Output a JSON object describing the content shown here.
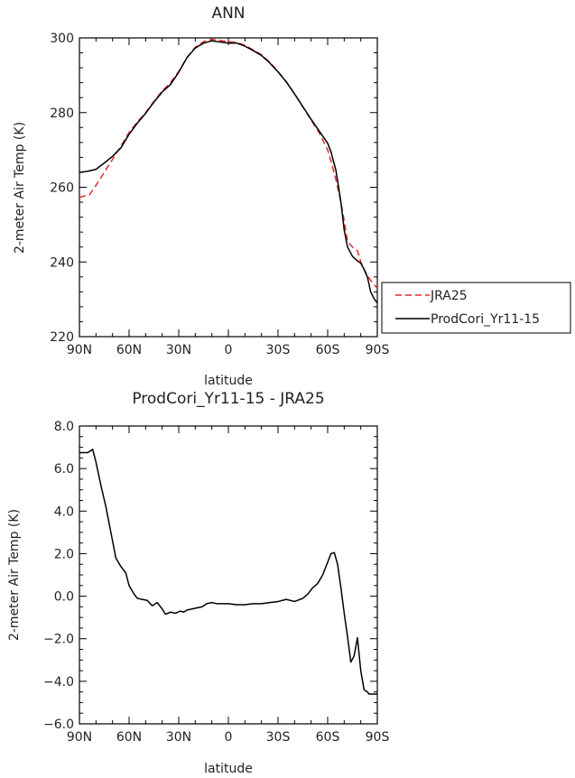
{
  "chart_data": [
    {
      "type": "line",
      "title": "ANN",
      "xlabel": "latitude",
      "ylabel": "2-meter Air Temp (K)",
      "x_reversed": true,
      "xlim": [
        -90,
        90
      ],
      "ylim": [
        220,
        300
      ],
      "x_ticks": [
        {
          "value": 90,
          "label": "90N"
        },
        {
          "value": 60,
          "label": "60N"
        },
        {
          "value": 30,
          "label": "30N"
        },
        {
          "value": 0,
          "label": "0"
        },
        {
          "value": -30,
          "label": "30S"
        },
        {
          "value": -60,
          "label": "60S"
        },
        {
          "value": -90,
          "label": "90S"
        }
      ],
      "y_ticks": [
        {
          "value": 220,
          "label": "220"
        },
        {
          "value": 240,
          "label": "240"
        },
        {
          "value": 260,
          "label": "260"
        },
        {
          "value": 280,
          "label": "280"
        },
        {
          "value": 300,
          "label": "300"
        }
      ],
      "legend": {
        "position": "outside-right"
      },
      "series": [
        {
          "name": "JRA25",
          "color": "#e8282b",
          "dash": "dashed",
          "x": [
            90,
            84,
            80,
            75,
            70,
            65,
            60,
            55,
            50,
            45,
            40,
            35,
            30,
            25,
            20,
            15,
            10,
            5,
            0,
            -5,
            -10,
            -15,
            -20,
            -25,
            -30,
            -35,
            -40,
            -45,
            -50,
            -55,
            -60,
            -62,
            -65,
            -68,
            -70,
            -72,
            -75,
            -78,
            -80,
            -82,
            -85,
            -87,
            -90
          ],
          "y": [
            257.3,
            258,
            260.5,
            264,
            267.5,
            271,
            274.7,
            277.5,
            280,
            283,
            285.8,
            288,
            291,
            294.8,
            297.5,
            299,
            299.6,
            299.3,
            299,
            298.8,
            298,
            296.8,
            295.5,
            293.5,
            291,
            288.3,
            285,
            281.5,
            278,
            274.5,
            270,
            267,
            262,
            256,
            251,
            245.5,
            244,
            243,
            240,
            238,
            235.7,
            234.5,
            233
          ]
        },
        {
          "name": "ProdCori_Yr11-15",
          "color": "#000000",
          "dash": "solid",
          "x": [
            90,
            85,
            80,
            75,
            70,
            65,
            60,
            55,
            50,
            45,
            40,
            35,
            30,
            25,
            20,
            15,
            10,
            5,
            0,
            -5,
            -10,
            -15,
            -20,
            -25,
            -30,
            -35,
            -40,
            -45,
            -50,
            -55,
            -60,
            -62,
            -65,
            -68,
            -70,
            -72,
            -75,
            -78,
            -80,
            -82,
            -84,
            -86,
            -88,
            -90
          ],
          "y": [
            264,
            264.3,
            264.8,
            266.5,
            268.3,
            270.5,
            274.2,
            277.2,
            279.8,
            282.8,
            285.5,
            287.5,
            290.8,
            294.7,
            297.3,
            298.6,
            299.2,
            298.9,
            298.6,
            298.6,
            297.8,
            296.6,
            295.3,
            293.3,
            290.9,
            288.2,
            285,
            281.6,
            278.2,
            275,
            271.8,
            269.5,
            264.5,
            256,
            248.5,
            244,
            241.5,
            240.3,
            239.7,
            238,
            236,
            232,
            230.2,
            229
          ]
        }
      ]
    },
    {
      "type": "line",
      "title": "ProdCori_Yr11-15 - JRA25",
      "xlabel": "latitude",
      "ylabel": "2-meter Air Temp (K)",
      "x_reversed": true,
      "xlim": [
        -90,
        90
      ],
      "ylim": [
        -6,
        8
      ],
      "x_ticks": [
        {
          "value": 90,
          "label": "90N"
        },
        {
          "value": 60,
          "label": "60N"
        },
        {
          "value": 30,
          "label": "30N"
        },
        {
          "value": 0,
          "label": "0"
        },
        {
          "value": -30,
          "label": "30S"
        },
        {
          "value": -60,
          "label": "60S"
        },
        {
          "value": -90,
          "label": "90S"
        }
      ],
      "y_ticks": [
        {
          "value": -6,
          "label": "−6.0"
        },
        {
          "value": -4,
          "label": "−4.0"
        },
        {
          "value": -2,
          "label": "−2.0"
        },
        {
          "value": 0,
          "label": "0.0"
        },
        {
          "value": 2,
          "label": "2.0"
        },
        {
          "value": 4,
          "label": "4.0"
        },
        {
          "value": 6,
          "label": "6.0"
        },
        {
          "value": 8,
          "label": "8.0"
        }
      ],
      "series": [
        {
          "color": "#000000",
          "dash": "solid",
          "x": [
            90,
            85,
            82,
            80,
            77,
            74,
            71,
            68,
            65,
            62,
            60,
            57,
            55,
            52,
            49,
            46,
            43,
            40,
            38,
            35,
            32,
            29,
            27,
            25,
            22,
            19,
            16,
            13,
            10,
            7,
            4,
            0,
            -5,
            -10,
            -15,
            -20,
            -25,
            -30,
            -35,
            -40,
            -45,
            -48,
            -51,
            -54,
            -57,
            -60,
            -62,
            -64,
            -66,
            -68,
            -70,
            -72,
            -74,
            -76,
            -78,
            -80,
            -82,
            -84,
            -85,
            -87,
            -89,
            -90
          ],
          "y": [
            6.75,
            6.75,
            6.9,
            6.3,
            5.2,
            4.2,
            3,
            1.8,
            1.4,
            1.1,
            0.5,
            0.1,
            -0.1,
            -0.15,
            -0.2,
            -0.45,
            -0.3,
            -0.6,
            -0.85,
            -0.75,
            -0.8,
            -0.7,
            -0.75,
            -0.65,
            -0.6,
            -0.55,
            -0.5,
            -0.35,
            -0.3,
            -0.35,
            -0.35,
            -0.35,
            -0.4,
            -0.4,
            -0.35,
            -0.35,
            -0.3,
            -0.25,
            -0.15,
            -0.25,
            -0.1,
            0.1,
            0.4,
            0.6,
            1.0,
            1.6,
            2.0,
            2.05,
            1.5,
            0.4,
            -0.8,
            -1.9,
            -3.1,
            -2.8,
            -1.95,
            -3.5,
            -4.4,
            -4.5,
            -4.6,
            -4.6,
            -4.6,
            -4.6
          ]
        }
      ]
    }
  ]
}
